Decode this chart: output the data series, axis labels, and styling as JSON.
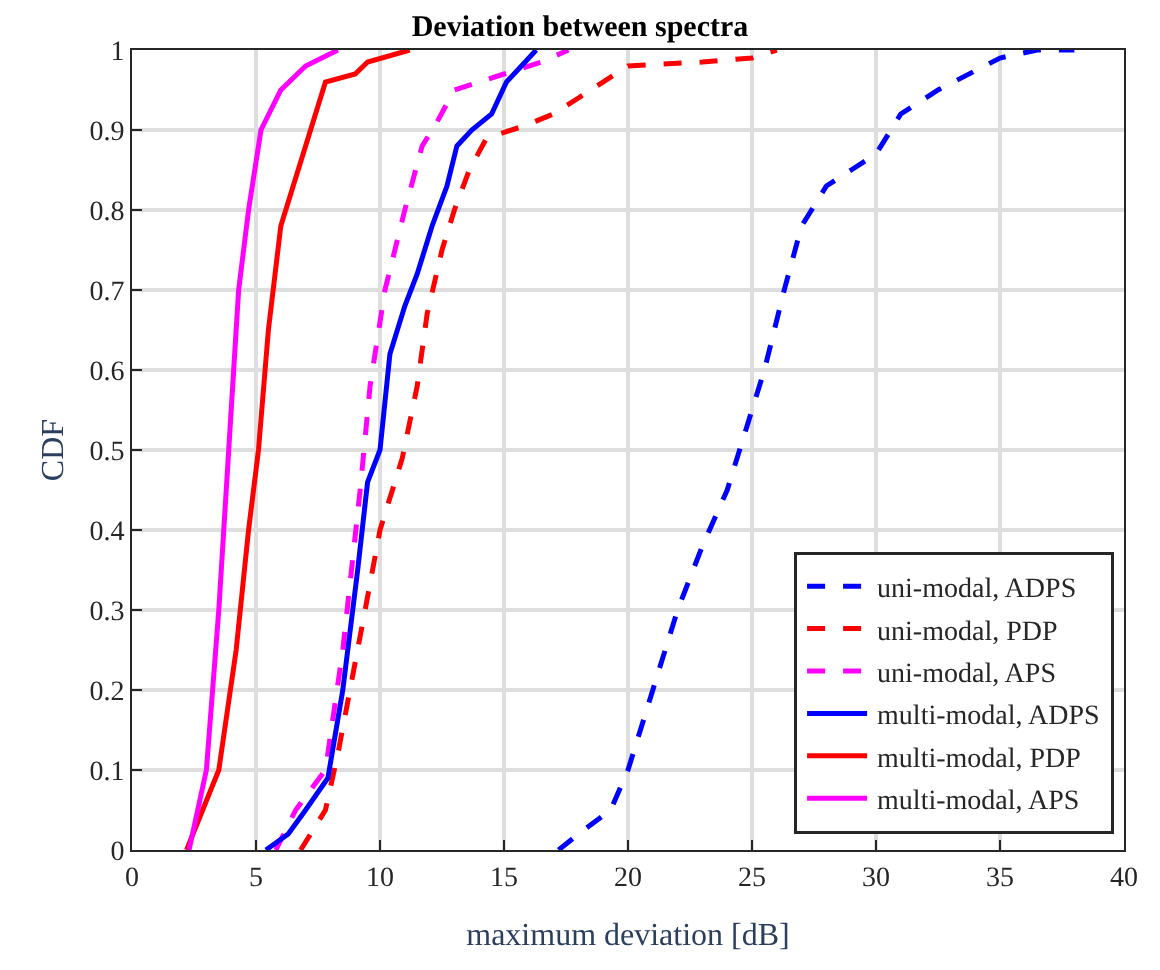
{
  "chart_data": {
    "type": "line",
    "title": "Deviation between spectra",
    "xlabel": "maximum deviation [dB]",
    "ylabel": "CDF",
    "xlim": [
      0,
      40
    ],
    "xticks": [
      0,
      5,
      10,
      15,
      20,
      25,
      30,
      35,
      40
    ],
    "ylim": [
      0,
      1
    ],
    "yticks": [
      0,
      0.1,
      0.2,
      0.3,
      0.4,
      0.5,
      0.6,
      0.7,
      0.8,
      0.9,
      1
    ],
    "grid": true,
    "legend": "bottom right",
    "marker": "none",
    "series": [
      {
        "name": "uni-modal, ADPS",
        "color": "#0000ff",
        "line_style": "dashed",
        "x": [
          17.2,
          18,
          19.3,
          20,
          21,
          22,
          23,
          24,
          24.7,
          25.5,
          26.3,
          27,
          28,
          29,
          30,
          31,
          32.5,
          35,
          36.5,
          38
        ],
        "values": [
          0,
          0.02,
          0.05,
          0.1,
          0.2,
          0.3,
          0.38,
          0.45,
          0.52,
          0.6,
          0.7,
          0.78,
          0.83,
          0.85,
          0.87,
          0.92,
          0.95,
          0.99,
          1,
          1
        ]
      },
      {
        "name": "uni-modal, PDP",
        "color": "#ff0000",
        "line_style": "dashed",
        "x": [
          6.8,
          7.8,
          8.3,
          9.4,
          10,
          10.9,
          11.5,
          11.9,
          12.5,
          13,
          13.6,
          14.3,
          15.8,
          17,
          18,
          20,
          23,
          25,
          26
        ],
        "values": [
          0,
          0.05,
          0.12,
          0.3,
          0.4,
          0.49,
          0.58,
          0.67,
          0.75,
          0.8,
          0.85,
          0.89,
          0.905,
          0.92,
          0.94,
          0.98,
          0.985,
          0.99,
          1
        ]
      },
      {
        "name": "uni-modal, APS",
        "color": "#ff00ff",
        "line_style": "dashed",
        "x": [
          5.8,
          6.6,
          7.8,
          8.5,
          9.2,
          9.6,
          10.2,
          11,
          11.7,
          12.3,
          13,
          15,
          16.5,
          17.6
        ],
        "values": [
          0,
          0.05,
          0.1,
          0.25,
          0.45,
          0.58,
          0.7,
          0.8,
          0.88,
          0.91,
          0.95,
          0.97,
          0.985,
          1
        ]
      },
      {
        "name": "multi-modal, ADPS",
        "color": "#0000ff",
        "line_style": "solid",
        "x": [
          5.4,
          6.3,
          7,
          7.9,
          8.5,
          9.1,
          9.5,
          10,
          10.4,
          11,
          11.5,
          12.1,
          12.7,
          13.1,
          13.7,
          14.5,
          15.1,
          16.3
        ],
        "values": [
          0,
          0.02,
          0.05,
          0.09,
          0.2,
          0.35,
          0.46,
          0.5,
          0.62,
          0.68,
          0.72,
          0.78,
          0.83,
          0.88,
          0.9,
          0.92,
          0.96,
          1
        ]
      },
      {
        "name": "multi-modal, PDP",
        "color": "#ff0000",
        "line_style": "solid",
        "x": [
          2.2,
          3.5,
          4.2,
          4.7,
          5.1,
          5.5,
          6,
          6.5,
          7,
          7.5,
          7.8,
          9,
          9.5,
          11.2
        ],
        "values": [
          0,
          0.1,
          0.25,
          0.4,
          0.5,
          0.65,
          0.78,
          0.83,
          0.88,
          0.93,
          0.96,
          0.97,
          0.985,
          1
        ]
      },
      {
        "name": "multi-modal, APS",
        "color": "#ff00ff",
        "line_style": "solid",
        "x": [
          2.3,
          3,
          3.5,
          3.9,
          4.3,
          4.7,
          5.2,
          6,
          7,
          8.3
        ],
        "values": [
          0,
          0.1,
          0.3,
          0.5,
          0.7,
          0.8,
          0.9,
          0.95,
          0.98,
          1
        ]
      }
    ]
  }
}
